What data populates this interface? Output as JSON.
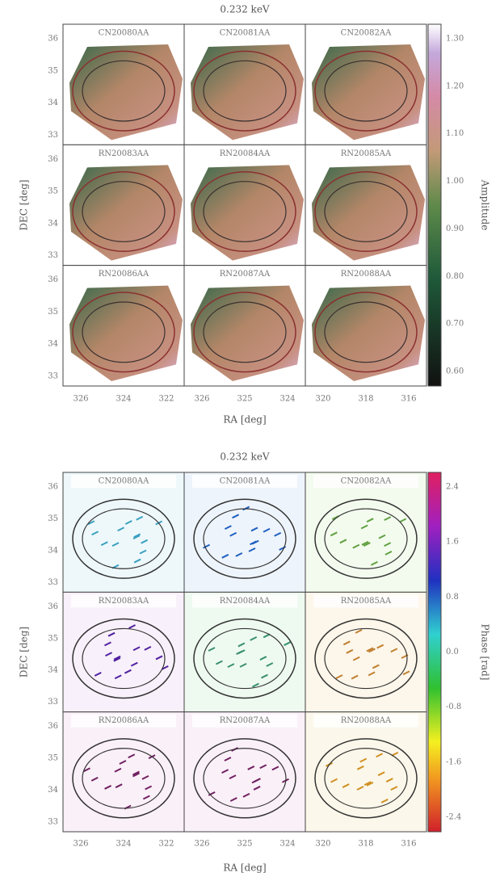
{
  "figures": [
    {
      "title": "0.232 keV",
      "panels": [
        "CN20080AA",
        "CN20081AA",
        "CN20082AA",
        "RN20083AA",
        "RN20084AA",
        "RN20085AA",
        "RN20086AA",
        "RN20087AA",
        "RN20088AA"
      ],
      "y_ticks": [
        "36",
        "35",
        "34",
        "33"
      ],
      "x_ticks": [
        [
          "326",
          "324",
          "322"
        ],
        [
          "326",
          "325",
          "324"
        ],
        [
          "320",
          "318",
          "316"
        ]
      ],
      "y_label": "DEC [deg]",
      "x_label": "RA [deg]",
      "colorbar": {
        "label": "Amplitude",
        "ticks": [
          "1.30",
          "1.20",
          "1.10",
          "1.00",
          "0.90",
          "0.80",
          "0.70",
          "0.60"
        ]
      }
    },
    {
      "title": "0.232 keV",
      "panels": [
        "CN20080AA",
        "CN20081AA",
        "CN20082AA",
        "RN20083AA",
        "RN20084AA",
        "RN20085AA",
        "RN20086AA",
        "RN20087AA",
        "RN20088AA"
      ],
      "y_ticks": [
        "36",
        "35",
        "34",
        "33"
      ],
      "x_ticks": [
        [
          "326",
          "324",
          "322"
        ],
        [
          "326",
          "325",
          "324"
        ],
        [
          "320",
          "318",
          "316"
        ]
      ],
      "y_label": "DEC [deg]",
      "x_label": "RA [deg]",
      "colorbar": {
        "label": "Phase [rad]",
        "ticks": [
          "2.4",
          "1.6",
          "0.8",
          "0.0",
          "-0.8",
          "-1.6",
          "-2.4"
        ]
      }
    }
  ]
}
